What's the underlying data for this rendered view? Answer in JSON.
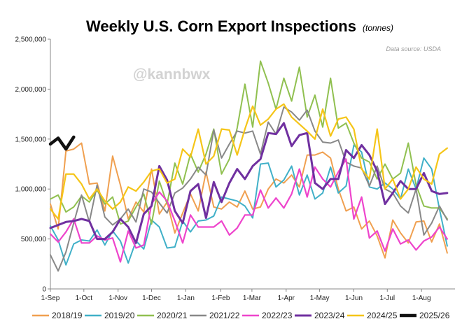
{
  "chart_data": {
    "type": "line",
    "title": "Weekly U.S. Corn Export Inspections",
    "subtitle": "(tonnes)",
    "source": "Data source: USDA",
    "watermark": "@kannbwx",
    "xlabel": "",
    "ylabel": "",
    "ylim": [
      0,
      2500000
    ],
    "xlim": [
      0,
      52
    ],
    "legend_position": "bottom",
    "grid": false,
    "yticks": [
      0,
      500000,
      1000000,
      1500000,
      2000000,
      2500000
    ],
    "ytick_labels": [
      "0",
      "500,000",
      "1,000,000",
      "1,500,000",
      "2,000,000",
      "2,500,000"
    ],
    "xticks": [
      {
        "label": "1-Sep",
        "week": 0
      },
      {
        "label": "1-Oct",
        "week": 4.3
      },
      {
        "label": "1-Nov",
        "week": 8.7
      },
      {
        "label": "1-Dec",
        "week": 13
      },
      {
        "label": "1-Jan",
        "week": 17.4
      },
      {
        "label": "1-Feb",
        "week": 21.9
      },
      {
        "label": "1-Mar",
        "week": 25.9
      },
      {
        "label": "1-Apr",
        "week": 30.3
      },
      {
        "label": "1-May",
        "week": 34.6
      },
      {
        "label": "1-Jun",
        "week": 39
      },
      {
        "label": "1-Jul",
        "week": 43.3
      },
      {
        "label": "1-Aug",
        "week": 47.7
      }
    ],
    "series": [
      {
        "name": "2018/19",
        "color": "#f0a050",
        "width": 2,
        "values": [
          850000,
          600000,
          1380000,
          1400000,
          1460000,
          1050000,
          1060000,
          780000,
          1330000,
          1040000,
          700000,
          870000,
          770000,
          1200000,
          750000,
          870000,
          560000,
          760000,
          950000,
          780000,
          1170000,
          820000,
          800000,
          870000,
          820000,
          980000,
          800000,
          820000,
          1000000,
          1100000,
          1060000,
          1140000,
          1020000,
          1340000,
          1340000,
          1370000,
          1310000,
          1000000,
          780000,
          820000,
          600000,
          680000,
          530000,
          310000,
          690000,
          560000,
          460000,
          670000,
          680000,
          470000,
          650000,
          360000
        ]
      },
      {
        "name": "2019/20",
        "color": "#40b0c8",
        "width": 2,
        "values": [
          630000,
          490000,
          240000,
          450000,
          490000,
          480000,
          590000,
          440000,
          580000,
          480000,
          260000,
          480000,
          400000,
          690000,
          620000,
          410000,
          420000,
          680000,
          570000,
          680000,
          690000,
          730000,
          920000,
          900000,
          880000,
          830000,
          710000,
          1250000,
          1260000,
          1020000,
          1090000,
          1230000,
          940000,
          1140000,
          900000,
          960000,
          1220000,
          960000,
          1030000,
          1440000,
          1370000,
          1020000,
          1000000,
          1060000,
          1000000,
          900000,
          1200000,
          1000000,
          1310000,
          1200000,
          800000,
          430000
        ]
      },
      {
        "name": "2020/21",
        "color": "#90c050",
        "width": 2,
        "values": [
          900000,
          940000,
          770000,
          820000,
          930000,
          870000,
          990000,
          850000,
          920000,
          650000,
          680000,
          820000,
          950000,
          650000,
          1080000,
          850000,
          1260000,
          1050000,
          1350000,
          1170000,
          1350000,
          1600000,
          1150000,
          1300000,
          1610000,
          2050000,
          1620000,
          2280000,
          2060000,
          1800000,
          2110000,
          1880000,
          2220000,
          1720000,
          1940000,
          1620000,
          2110000,
          1610000,
          1660000,
          1460000,
          1310000,
          1270000,
          1100000,
          1250000,
          1100000,
          1160000,
          1460000,
          1040000,
          830000,
          810000,
          810000,
          700000
        ]
      },
      {
        "name": "2021/22",
        "color": "#888888",
        "width": 2,
        "values": [
          340000,
          180000,
          370000,
          660000,
          940000,
          670000,
          1040000,
          720000,
          640000,
          700000,
          800000,
          670000,
          1000000,
          970000,
          860000,
          760000,
          960000,
          1010000,
          1100000,
          1220000,
          1140000,
          1590000,
          1310000,
          1450000,
          1580000,
          1560000,
          1580000,
          1350000,
          1670000,
          1550000,
          1820000,
          1770000,
          1690000,
          1790000,
          1580000,
          1470000,
          1460000,
          1490000,
          1270000,
          1230000,
          1210000,
          1030000,
          1230000,
          1000000,
          960000,
          830000,
          760000,
          1000000,
          540000,
          660000,
          830000,
          690000
        ]
      },
      {
        "name": "2022/23",
        "color": "#ee44cc",
        "width": 2.2,
        "values": [
          550000,
          470000,
          570000,
          700000,
          460000,
          460000,
          530000,
          490000,
          510000,
          270000,
          580000,
          410000,
          440000,
          850000,
          970000,
          880000,
          680000,
          460000,
          740000,
          620000,
          620000,
          620000,
          680000,
          540000,
          610000,
          740000,
          740000,
          990000,
          810000,
          910000,
          810000,
          950000,
          1200000,
          920000,
          1220000,
          1100000,
          1020000,
          1170000,
          1300000,
          700000,
          920000,
          510000,
          580000,
          380000,
          600000,
          450000,
          490000,
          390000,
          480000,
          520000,
          620000,
          500000
        ]
      },
      {
        "name": "2023/24",
        "color": "#7030a0",
        "width": 3,
        "values": [
          610000,
          640000,
          670000,
          680000,
          700000,
          680000,
          500000,
          500000,
          570000,
          700000,
          620000,
          460000,
          750000,
          830000,
          1230000,
          1090000,
          780000,
          660000,
          980000,
          1050000,
          710000,
          1070000,
          870000,
          1060000,
          1200000,
          1100000,
          1230000,
          1300000,
          1560000,
          1550000,
          1660000,
          1430000,
          1540000,
          1560000,
          1060000,
          1000000,
          1100000,
          1100000,
          1390000,
          1310000,
          1440000,
          1340000,
          1180000,
          850000,
          960000,
          1080000,
          1000000,
          1000000,
          1160000,
          980000,
          950000,
          960000
        ]
      },
      {
        "name": "2024/25",
        "color": "#f5c518",
        "width": 2.2,
        "values": [
          800000,
          700000,
          1150000,
          1150000,
          1050000,
          900000,
          1000000,
          880000,
          800000,
          870000,
          1020000,
          980000,
          1070000,
          1180000,
          1200000,
          1060000,
          1100000,
          1400000,
          1320000,
          1600000,
          1250000,
          1330000,
          1600000,
          1590000,
          1340000,
          1600000,
          1830000,
          1640000,
          1700000,
          1800000,
          1850000,
          1720000,
          1650000,
          1580000,
          1500000,
          1800000,
          1530000,
          1700000,
          1720000,
          1600000,
          1200000,
          1100000,
          1600000,
          1000000,
          1100000,
          900000,
          1000000,
          1220000,
          1100000,
          1050000,
          1350000,
          1410000
        ]
      },
      {
        "name": "2025/26",
        "color": "#111111",
        "width": 4.5,
        "values": [
          1450000,
          1510000,
          1400000,
          1520000
        ]
      }
    ]
  }
}
